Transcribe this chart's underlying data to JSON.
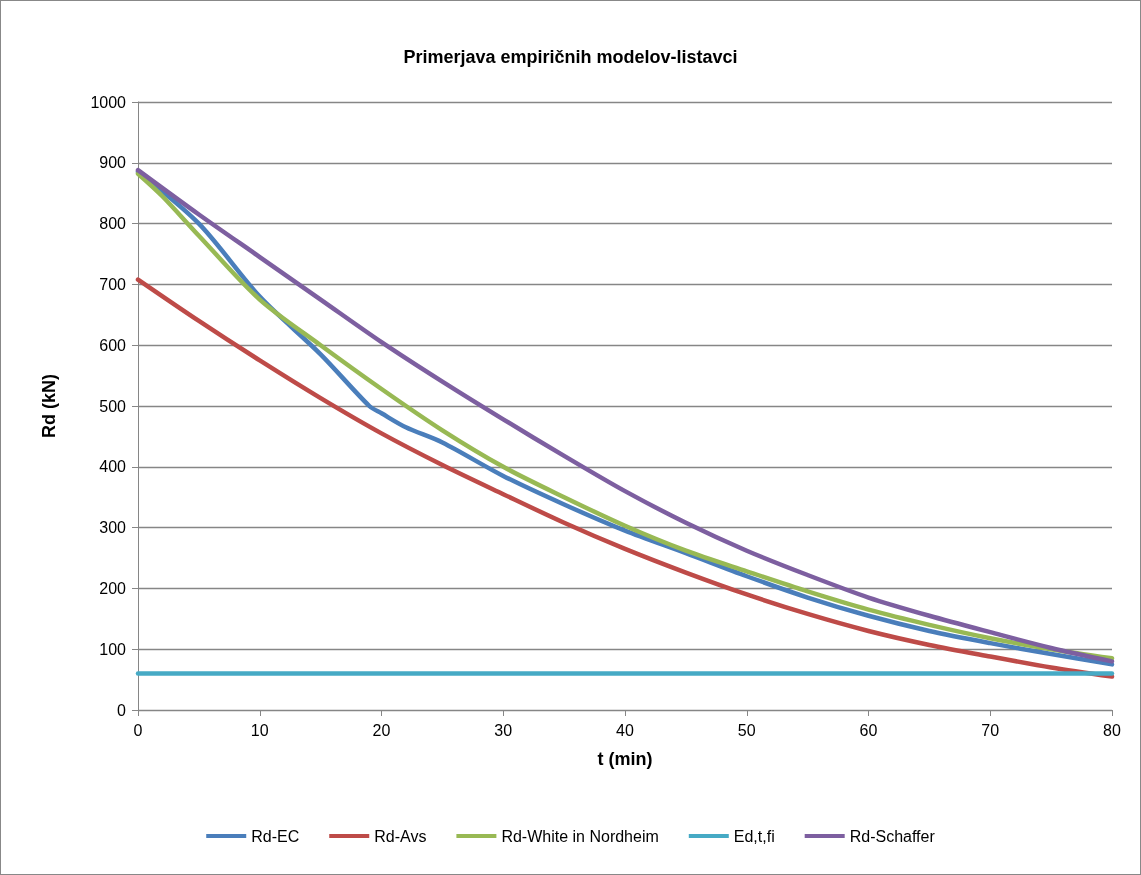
{
  "chart_data": {
    "type": "line",
    "title": "Primerjava empiričnih modelov-listavci",
    "xlabel": "t (min)",
    "ylabel": "Rd (kN)",
    "xlim": [
      0,
      80
    ],
    "xticks": [
      0,
      10,
      20,
      30,
      40,
      50,
      60,
      70,
      80
    ],
    "ylim": [
      0,
      1000
    ],
    "yticks": [
      0,
      100,
      200,
      300,
      400,
      500,
      600,
      700,
      800,
      900,
      1000
    ],
    "grid": "y",
    "legend": "bottom",
    "marker": "none",
    "line_style": "solid",
    "series": [
      {
        "name": "Rd-EC",
        "color": "#4a7ebb",
        "x": [
          0,
          5,
          10,
          15,
          19,
          20,
          22,
          25,
          30,
          35,
          40,
          45,
          50,
          55,
          60,
          65,
          70,
          75,
          80
        ],
        "values": [
          885,
          800,
          680,
          585,
          500,
          488,
          465,
          440,
          385,
          338,
          295,
          258,
          220,
          185,
          155,
          130,
          110,
          92,
          75
        ]
      },
      {
        "name": "Rd-Avs",
        "color": "#be4b48",
        "x": [
          0,
          5,
          10,
          15,
          20,
          25,
          30,
          35,
          40,
          45,
          50,
          55,
          60,
          65,
          70,
          75,
          80
        ],
        "values": [
          708,
          640,
          575,
          513,
          455,
          403,
          355,
          308,
          265,
          226,
          190,
          158,
          130,
          107,
          88,
          70,
          55
        ]
      },
      {
        "name": "Rd-White in Nordheim",
        "color": "#98b954",
        "x": [
          0,
          2,
          5,
          10,
          15,
          20,
          25,
          30,
          35,
          40,
          45,
          50,
          55,
          60,
          65,
          70,
          75,
          80
        ],
        "values": [
          882,
          845,
          780,
          675,
          600,
          528,
          460,
          400,
          350,
          303,
          262,
          228,
          195,
          165,
          140,
          118,
          100,
          85
        ]
      },
      {
        "name": "Ed,t,fi",
        "color": "#46aac5",
        "x": [
          0,
          80
        ],
        "values": [
          60,
          60
        ]
      },
      {
        "name": "Rd-Schaffer",
        "color": "#7d5fa0",
        "x": [
          0,
          5,
          10,
          15,
          20,
          25,
          30,
          35,
          40,
          45,
          50,
          55,
          60,
          65,
          70,
          75,
          80
        ],
        "values": [
          888,
          815,
          745,
          675,
          605,
          540,
          478,
          418,
          360,
          308,
          262,
          222,
          185,
          155,
          128,
          102,
          80
        ]
      }
    ]
  }
}
